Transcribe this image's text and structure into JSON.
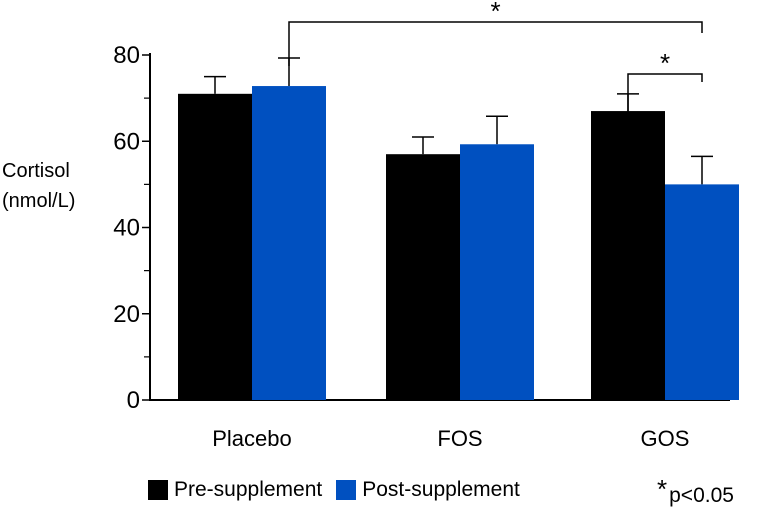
{
  "chart_data": {
    "type": "bar",
    "title": "",
    "ylabel_lines": [
      "Cortisol",
      "(nmol/L)"
    ],
    "xlabel": "",
    "ylim": [
      0,
      80
    ],
    "yticks": [
      0,
      20,
      40,
      60,
      80
    ],
    "categories": [
      "Placebo",
      "FOS",
      "GOS"
    ],
    "series": [
      {
        "name": "Pre-supplement",
        "color": "#000000",
        "values": [
          71,
          57,
          67
        ],
        "errors": [
          4,
          4,
          4
        ]
      },
      {
        "name": "Post-supplement",
        "color": "#0050c0",
        "values": [
          72.8,
          59.3,
          50
        ],
        "errors": [
          6.5,
          6.5,
          6.5
        ]
      }
    ],
    "significance": [
      {
        "from": [
          "Placebo",
          "Post-supplement"
        ],
        "to": [
          "GOS",
          "Post-supplement"
        ],
        "label": "*"
      },
      {
        "from": [
          "GOS",
          "Pre-supplement"
        ],
        "to": [
          "GOS",
          "Post-supplement"
        ],
        "label": "*"
      }
    ],
    "significance_note": {
      "star": "*",
      "text": "p<0.05"
    },
    "legend_position": "bottom"
  }
}
